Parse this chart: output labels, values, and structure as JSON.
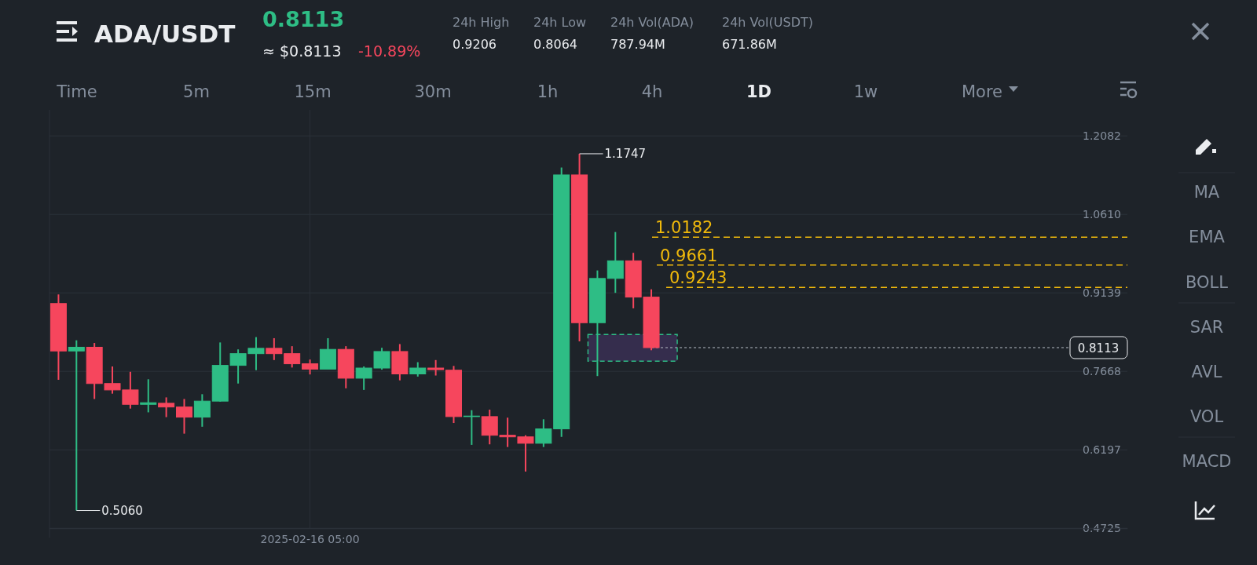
{
  "chart_data": {
    "type": "candlestick",
    "title": "ADA/USDT",
    "categories": [
      null,
      null,
      null,
      null,
      null,
      null,
      null,
      null,
      null,
      null,
      null,
      null,
      null,
      null,
      "2025-02-16 05:00",
      null,
      null,
      null,
      null,
      null,
      null,
      null,
      null,
      null,
      null,
      null,
      null,
      null,
      null,
      null,
      null,
      null,
      null,
      null,
      null,
      null,
      null,
      null,
      null,
      null,
      null,
      null,
      null,
      null,
      null,
      null,
      null,
      null,
      null,
      null,
      null,
      null,
      null,
      null,
      null,
      null,
      null,
      null,
      null,
      null
    ],
    "ohlc": [
      [
        0.894,
        0.911,
        0.751,
        0.805
      ],
      [
        0.805,
        0.825,
        0.506,
        0.812
      ],
      [
        0.812,
        0.82,
        0.715,
        0.744
      ],
      [
        0.744,
        0.776,
        0.725,
        0.732
      ],
      [
        0.732,
        0.766,
        0.697,
        0.705
      ],
      [
        0.705,
        0.752,
        0.69,
        0.708
      ],
      [
        0.707,
        0.718,
        0.681,
        0.7
      ],
      [
        0.7,
        0.715,
        0.65,
        0.681
      ],
      [
        0.681,
        0.724,
        0.663,
        0.711
      ],
      [
        0.711,
        0.821,
        0.71,
        0.778
      ],
      [
        0.778,
        0.808,
        0.744,
        0.8
      ],
      [
        0.8,
        0.831,
        0.769,
        0.81
      ],
      [
        0.81,
        0.829,
        0.788,
        0.8
      ],
      [
        0.8,
        0.814,
        0.774,
        0.781
      ],
      [
        0.781,
        0.789,
        0.761,
        0.771
      ],
      [
        0.771,
        0.829,
        0.771,
        0.808
      ],
      [
        0.808,
        0.814,
        0.735,
        0.754
      ],
      [
        0.754,
        0.776,
        0.732,
        0.773
      ],
      [
        0.773,
        0.811,
        0.77,
        0.804
      ],
      [
        0.804,
        0.818,
        0.75,
        0.762
      ],
      [
        0.762,
        0.784,
        0.757,
        0.773
      ],
      [
        0.773,
        0.788,
        0.759,
        0.77
      ],
      [
        0.769,
        0.777,
        0.67,
        0.682
      ],
      [
        0.682,
        0.694,
        0.629,
        0.683
      ],
      [
        0.682,
        0.695,
        0.63,
        0.647
      ],
      [
        0.647,
        0.68,
        0.625,
        0.644
      ],
      [
        0.644,
        0.647,
        0.579,
        0.632
      ],
      [
        0.632,
        0.677,
        0.625,
        0.659
      ],
      [
        0.659,
        1.149,
        0.644,
        1.135
      ],
      [
        1.135,
        1.1747,
        0.823,
        0.858
      ],
      [
        0.858,
        0.956,
        0.758,
        0.941
      ],
      [
        0.941,
        1.028,
        0.914,
        0.974
      ],
      [
        0.974,
        0.989,
        0.885,
        0.906
      ],
      [
        0.906,
        0.9206,
        0.8064,
        0.8113
      ],
      null,
      null,
      null,
      null,
      null,
      null,
      null,
      null,
      null,
      null,
      null,
      null,
      null,
      null,
      null,
      null,
      null,
      null,
      null,
      null,
      null,
      null,
      null,
      null,
      null,
      null
    ],
    "colors": [
      "#f6465d",
      "#2ebd85",
      "#f6465d",
      "#f6465d",
      "#f6465d",
      "#2ebd85",
      "#f6465d",
      "#f6465d",
      "#2ebd85",
      "#2ebd85",
      "#2ebd85",
      "#2ebd85",
      "#f6465d",
      "#f6465d",
      "#f6465d",
      "#2ebd85",
      "#f6465d",
      "#2ebd85",
      "#2ebd85",
      "#f6465d",
      "#2ebd85",
      "#f6465d",
      "#f6465d",
      "#2ebd85",
      "#f6465d",
      "#f6465d",
      "#f6465d",
      "#2ebd85",
      "#2ebd85",
      "#f6465d",
      "#2ebd85",
      "#2ebd85",
      "#f6465d",
      "#f6465d",
      null,
      null,
      null,
      null,
      null,
      null,
      null,
      null,
      null,
      null,
      null,
      null,
      null,
      null,
      null,
      null,
      null,
      null,
      null,
      null,
      null,
      null,
      null,
      null,
      null,
      null
    ],
    "ylim": [
      0.4725,
      1.257
    ],
    "yticks": [
      0.4725,
      0.6197,
      0.7668,
      0.9139,
      {
        "value": 1.061,
        "label": "1.0610"
      },
      1.2082
    ],
    "grid": true,
    "ref_lines": [
      {
        "axis": "y",
        "value": 1.0182,
        "label": "1.0182",
        "color": "#f0b90b",
        "line_style": "dashed"
      },
      {
        "axis": "y",
        "value": 0.9661,
        "label": "0.9661",
        "color": "#f0b90b",
        "line_style": "dashed"
      },
      {
        "axis": "y",
        "value": 0.9243,
        "label": "0.9243",
        "color": "#f0b90b",
        "line_style": "dashed"
      },
      {
        "axis": "y",
        "value": 0.8113,
        "label": "0.8113",
        "color": "#b7bdc6",
        "line_style": "dotted"
      }
    ],
    "bands": [
      {
        "axis": "y",
        "from": 0.786,
        "to": 0.836,
        "color": "#352d4d"
      }
    ],
    "annotations": [
      "1.1747",
      "0.5060",
      "0.8113",
      "≈ $0.8113",
      "-10.89%",
      "24h High",
      "0.9206",
      "24h Low",
      "0.8064",
      "24h Vol(ADA)",
      "787.94M",
      "24h Vol(USDT)",
      "671.86M",
      "Time",
      "5m",
      "15m",
      "30m",
      "1h",
      "4h",
      "1D",
      "1w",
      "More",
      "MA",
      "EMA",
      "BOLL",
      "SAR",
      "AVL",
      "VOL",
      "MACD"
    ]
  }
}
